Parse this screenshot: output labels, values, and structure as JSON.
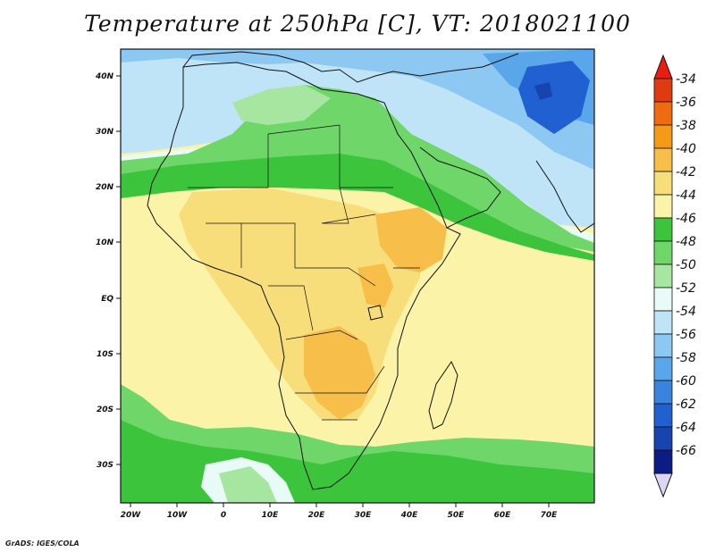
{
  "map": {
    "title": "Temperature at 250hPa [C], VT: 2018021100",
    "credit": "GrADS: IGES/COLA",
    "lat_labels": [
      "40N",
      "30N",
      "20N",
      "10N",
      "EQ",
      "10S",
      "20S",
      "30S"
    ],
    "lon_labels": [
      "20W",
      "10W",
      "0",
      "10E",
      "20E",
      "30E",
      "40E",
      "50E",
      "60E",
      "70E"
    ],
    "colorbar": {
      "labels": [
        "-34",
        "-36",
        "-38",
        "-40",
        "-42",
        "-44",
        "-46",
        "-48",
        "-50",
        "-52",
        "-54",
        "-56",
        "-58",
        "-60",
        "-62",
        "-64",
        "-66"
      ],
      "colors": [
        "#e03a10",
        "#f06a10",
        "#f59a18",
        "#f7be4a",
        "#f8de7a",
        "#fbf3a8",
        "#3cc43c",
        "#6fd66a",
        "#a6e6a0",
        "#e8fbf6",
        "#bfe4f8",
        "#8cc8f2",
        "#5aa6ea",
        "#3a84e0",
        "#2060d0",
        "#1844b0",
        "#0c1c84"
      ],
      "top_arrow_color": "#e81c10",
      "bottom_arrow_color": "#dcd6f4"
    }
  }
}
